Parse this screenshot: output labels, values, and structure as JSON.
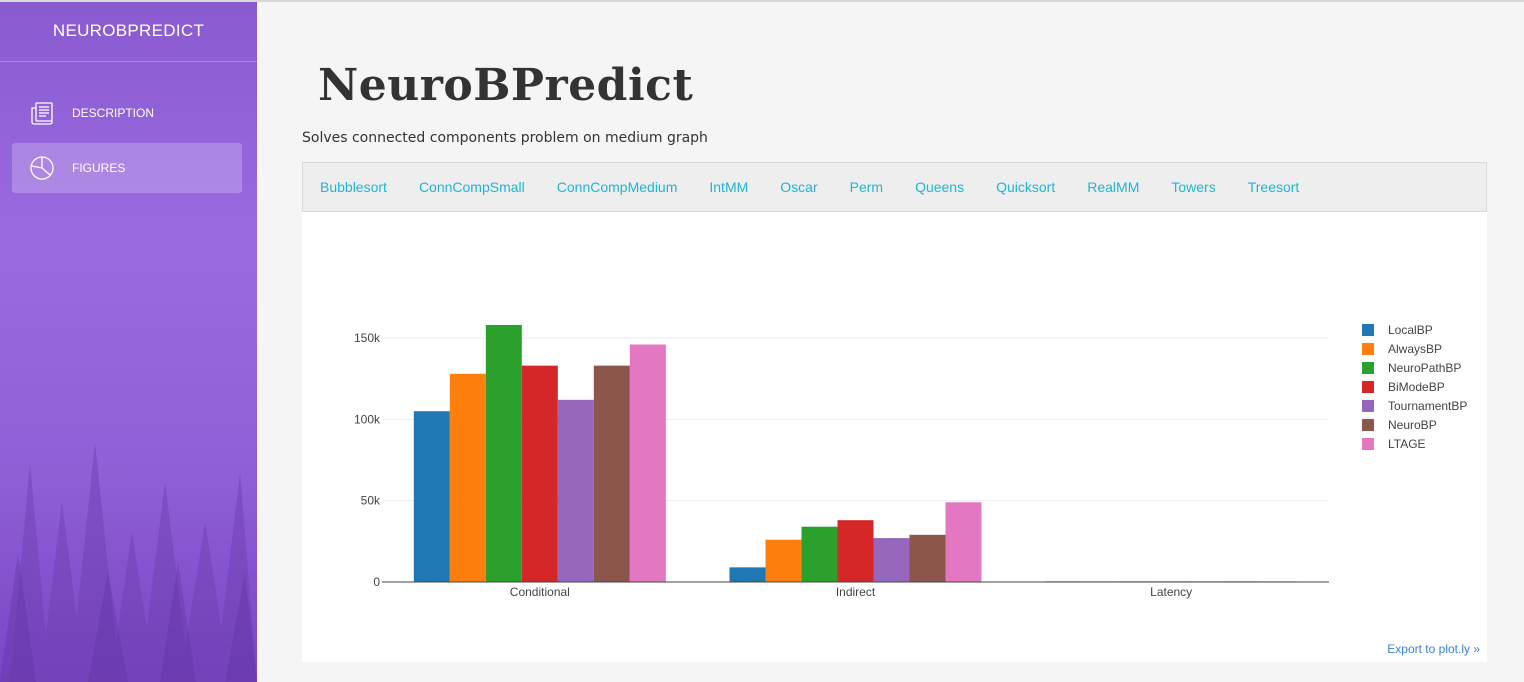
{
  "sidebar": {
    "brand": "NEUROBPREDICT",
    "items": [
      {
        "label": "DESCRIPTION",
        "icon": "document-icon",
        "active": false
      },
      {
        "label": "FIGURES",
        "icon": "pie-chart-icon",
        "active": true
      }
    ]
  },
  "header": {
    "title": "NeuroBPredict",
    "subtitle": "Solves connected components problem on medium graph"
  },
  "tabs": [
    "Bubblesort",
    "ConnCompSmall",
    "ConnCompMedium",
    "IntMM",
    "Oscar",
    "Perm",
    "Queens",
    "Quicksort",
    "RealMM",
    "Towers",
    "Treesort"
  ],
  "export_label": "Export to plot.ly »",
  "colors": {
    "accent": "#1fb5d3",
    "sidebar": "#8a5bd0"
  },
  "chart_data": {
    "type": "bar",
    "categories": [
      "Conditional",
      "Indirect",
      "Latency"
    ],
    "series": [
      {
        "name": "LocalBP",
        "color": "#1f77b4",
        "values": [
          105000,
          9000,
          400
        ]
      },
      {
        "name": "AlwaysBP",
        "color": "#ff7f0e",
        "values": [
          128000,
          26000,
          400
        ]
      },
      {
        "name": "NeuroPathBP",
        "color": "#2ca02c",
        "values": [
          158000,
          34000,
          400
        ]
      },
      {
        "name": "BiModeBP",
        "color": "#d62728",
        "values": [
          133000,
          38000,
          400
        ]
      },
      {
        "name": "TournamentBP",
        "color": "#9467bd",
        "values": [
          112000,
          27000,
          400
        ]
      },
      {
        "name": "NeuroBP",
        "color": "#8c564b",
        "values": [
          133000,
          29000,
          400
        ]
      },
      {
        "name": "LTAGE",
        "color": "#e377c2",
        "values": [
          146000,
          49000,
          400
        ]
      }
    ],
    "yticks": [
      0,
      50000,
      100000,
      150000
    ],
    "ytick_labels": [
      "0",
      "50k",
      "100k",
      "150k"
    ],
    "ylim": [
      0,
      165000
    ],
    "grid": true,
    "legend": "right"
  }
}
